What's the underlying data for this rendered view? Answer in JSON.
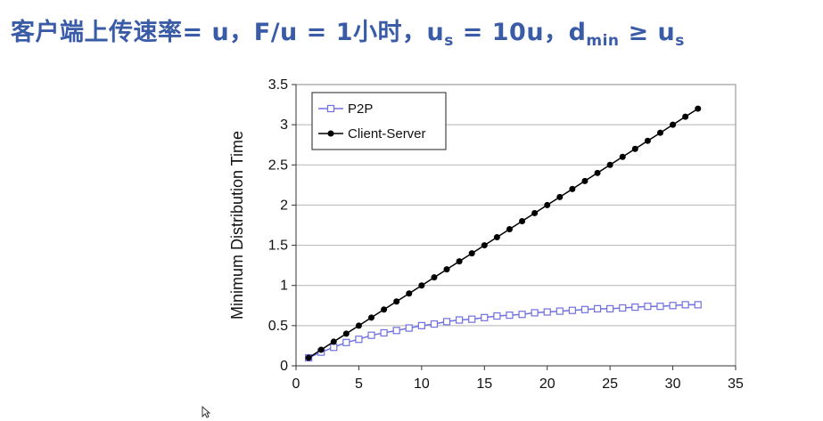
{
  "headline": {
    "prefix": "客户端上传速率= u，F/u = 1小时，",
    "us_base": "u",
    "us_sub": "s",
    "us_value": " = 10u，",
    "dmin_base": "d",
    "dmin_sub": "min",
    "ge_part": " ≥ u",
    "ge_sub": "s"
  },
  "chart_data": {
    "type": "line",
    "title": "",
    "xlabel": "",
    "ylabel": "Minimum Distribution Time",
    "xlim": [
      0,
      35
    ],
    "ylim": [
      0,
      3.5
    ],
    "xticks": [
      0,
      5,
      10,
      15,
      20,
      25,
      30,
      35
    ],
    "yticks": [
      0,
      0.5,
      1,
      1.5,
      2,
      2.5,
      3,
      3.5
    ],
    "ytick_labels": [
      "0",
      "0.5",
      "1",
      "1.5",
      "2",
      "2.5",
      "3",
      "3.5"
    ],
    "grid": "horizontal",
    "legend_position": "top-left",
    "x": [
      1,
      2,
      3,
      4,
      5,
      6,
      7,
      8,
      9,
      10,
      11,
      12,
      13,
      14,
      15,
      16,
      17,
      18,
      19,
      20,
      21,
      22,
      23,
      24,
      25,
      26,
      27,
      28,
      29,
      30,
      31,
      32
    ],
    "series": [
      {
        "name": "P2P",
        "color": "#7070e0",
        "marker": "square-open",
        "values": [
          0.1,
          0.17,
          0.23,
          0.29,
          0.33,
          0.38,
          0.41,
          0.44,
          0.47,
          0.5,
          0.52,
          0.55,
          0.57,
          0.58,
          0.6,
          0.62,
          0.63,
          0.64,
          0.66,
          0.67,
          0.68,
          0.69,
          0.7,
          0.71,
          0.71,
          0.72,
          0.73,
          0.74,
          0.74,
          0.75,
          0.76,
          0.76
        ]
      },
      {
        "name": "Client-Server",
        "color": "#000000",
        "marker": "circle-filled",
        "values": [
          0.1,
          0.2,
          0.3,
          0.4,
          0.5,
          0.6,
          0.7,
          0.8,
          0.9,
          1.0,
          1.1,
          1.2,
          1.3,
          1.4,
          1.5,
          1.6,
          1.7,
          1.8,
          1.9,
          2.0,
          2.1,
          2.2,
          2.3,
          2.4,
          2.5,
          2.6,
          2.7,
          2.8,
          2.9,
          3.0,
          3.1,
          3.2
        ]
      }
    ]
  }
}
